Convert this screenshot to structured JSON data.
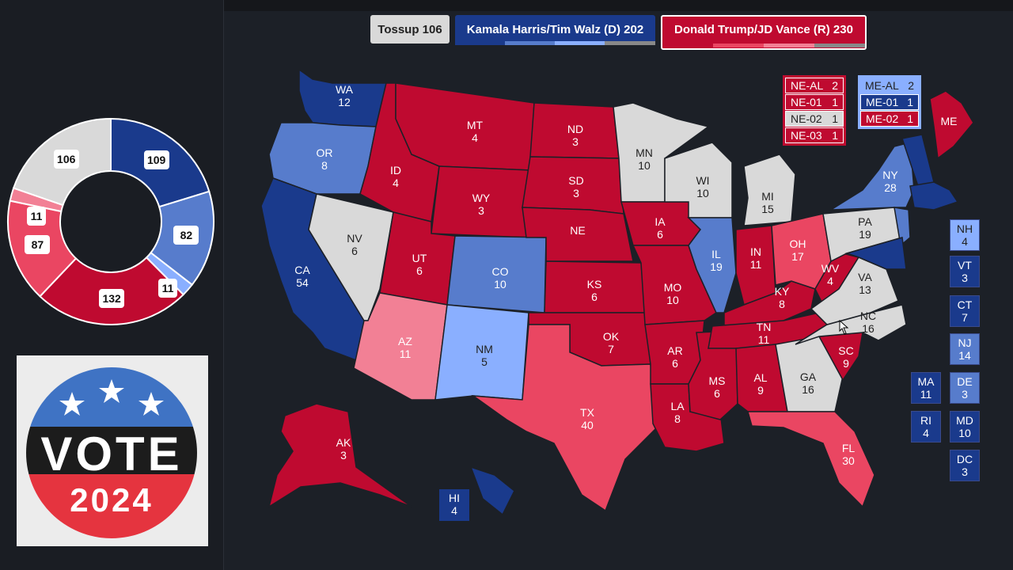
{
  "header": {
    "tossup_label": "Tossup 106",
    "dem_label": "Kamala Harris/Tim Walz (D) 202",
    "rep_label": "Donald Trump/JD Vance (R) 230"
  },
  "colors": {
    "safe_d": "#1a3a8c",
    "likely_d": "#577ccc",
    "lean_d": "#8aafff",
    "tossup": "#d9d9d9",
    "lean_r": "#f28095",
    "likely_r": "#ea4662",
    "safe_r": "#bf0a30",
    "background": "#1c2027"
  },
  "chart_data": {
    "type": "pie",
    "slices": [
      {
        "label": "Safe D",
        "value": 109,
        "color": "#1a3a8c"
      },
      {
        "label": "Likely D",
        "value": 82,
        "color": "#577ccc"
      },
      {
        "label": "Lean D",
        "value": 11,
        "color": "#8aafff"
      },
      {
        "label": "Safe R",
        "value": 132,
        "color": "#bf0a30"
      },
      {
        "label": "Likely R",
        "value": 87,
        "color": "#ea4662"
      },
      {
        "label": "Lean R",
        "value": 11,
        "color": "#f28095"
      },
      {
        "label": "Tossup",
        "value": 106,
        "color": "#d9d9d9"
      }
    ],
    "labels": [
      "109",
      "82",
      "11",
      "132",
      "87",
      "11",
      "106"
    ]
  },
  "vote_logo": {
    "word": "VOTE",
    "year": "2024"
  },
  "states": [
    {
      "abbr": "WA",
      "ev": "12",
      "rating": "safe_d"
    },
    {
      "abbr": "OR",
      "ev": "8",
      "rating": "likely_d"
    },
    {
      "abbr": "CA",
      "ev": "54",
      "rating": "safe_d"
    },
    {
      "abbr": "NV",
      "ev": "6",
      "rating": "tossup"
    },
    {
      "abbr": "ID",
      "ev": "4",
      "rating": "safe_r"
    },
    {
      "abbr": "MT",
      "ev": "4",
      "rating": "safe_r"
    },
    {
      "abbr": "WY",
      "ev": "3",
      "rating": "safe_r"
    },
    {
      "abbr": "UT",
      "ev": "6",
      "rating": "safe_r"
    },
    {
      "abbr": "AZ",
      "ev": "11",
      "rating": "lean_r"
    },
    {
      "abbr": "CO",
      "ev": "10",
      "rating": "likely_d"
    },
    {
      "abbr": "NM",
      "ev": "5",
      "rating": "lean_d"
    },
    {
      "abbr": "ND",
      "ev": "3",
      "rating": "safe_r"
    },
    {
      "abbr": "SD",
      "ev": "3",
      "rating": "safe_r"
    },
    {
      "abbr": "NE",
      "ev": "",
      "rating": "safe_r"
    },
    {
      "abbr": "KS",
      "ev": "6",
      "rating": "safe_r"
    },
    {
      "abbr": "OK",
      "ev": "7",
      "rating": "safe_r"
    },
    {
      "abbr": "TX",
      "ev": "40",
      "rating": "likely_r"
    },
    {
      "abbr": "MN",
      "ev": "10",
      "rating": "tossup"
    },
    {
      "abbr": "IA",
      "ev": "6",
      "rating": "safe_r"
    },
    {
      "abbr": "MO",
      "ev": "10",
      "rating": "safe_r"
    },
    {
      "abbr": "AR",
      "ev": "6",
      "rating": "safe_r"
    },
    {
      "abbr": "LA",
      "ev": "8",
      "rating": "safe_r"
    },
    {
      "abbr": "WI",
      "ev": "10",
      "rating": "tossup"
    },
    {
      "abbr": "IL",
      "ev": "19",
      "rating": "likely_d"
    },
    {
      "abbr": "MS",
      "ev": "6",
      "rating": "safe_r"
    },
    {
      "abbr": "MI",
      "ev": "15",
      "rating": "tossup"
    },
    {
      "abbr": "IN",
      "ev": "11",
      "rating": "safe_r"
    },
    {
      "abbr": "KY",
      "ev": "8",
      "rating": "safe_r"
    },
    {
      "abbr": "TN",
      "ev": "11",
      "rating": "safe_r"
    },
    {
      "abbr": "AL",
      "ev": "9",
      "rating": "safe_r"
    },
    {
      "abbr": "OH",
      "ev": "17",
      "rating": "likely_r"
    },
    {
      "abbr": "WV",
      "ev": "4",
      "rating": "safe_r"
    },
    {
      "abbr": "GA",
      "ev": "16",
      "rating": "tossup"
    },
    {
      "abbr": "FL",
      "ev": "30",
      "rating": "likely_r"
    },
    {
      "abbr": "SC",
      "ev": "9",
      "rating": "safe_r"
    },
    {
      "abbr": "NC",
      "ev": "16",
      "rating": "tossup"
    },
    {
      "abbr": "VA",
      "ev": "13",
      "rating": "tossup"
    },
    {
      "abbr": "PA",
      "ev": "19",
      "rating": "tossup"
    },
    {
      "abbr": "NY",
      "ev": "28",
      "rating": "likely_d"
    },
    {
      "abbr": "ME",
      "ev": "",
      "rating": "safe_r"
    },
    {
      "abbr": "AK",
      "ev": "3",
      "rating": "safe_r"
    },
    {
      "abbr": "HI",
      "ev": "4",
      "rating": "safe_d"
    }
  ],
  "small_states": [
    {
      "abbr": "NH",
      "ev": "4",
      "rating": "lean_d"
    },
    {
      "abbr": "VT",
      "ev": "3",
      "rating": "safe_d"
    },
    {
      "abbr": "CT",
      "ev": "7",
      "rating": "safe_d"
    },
    {
      "abbr": "NJ",
      "ev": "14",
      "rating": "likely_d"
    },
    {
      "abbr": "DE",
      "ev": "3",
      "rating": "likely_d"
    },
    {
      "abbr": "MD",
      "ev": "10",
      "rating": "safe_d"
    },
    {
      "abbr": "DC",
      "ev": "3",
      "rating": "safe_d"
    },
    {
      "abbr": "MA",
      "ev": "11",
      "rating": "safe_d"
    },
    {
      "abbr": "RI",
      "ev": "4",
      "rating": "safe_d"
    }
  ],
  "nebraska_districts": [
    {
      "name": "NE-AL",
      "ev": "2",
      "rating": "safe_r"
    },
    {
      "name": "NE-01",
      "ev": "1",
      "rating": "safe_r"
    },
    {
      "name": "NE-02",
      "ev": "1",
      "rating": "tossup"
    },
    {
      "name": "NE-03",
      "ev": "1",
      "rating": "safe_r"
    }
  ],
  "maine_districts": [
    {
      "name": "ME-AL",
      "ev": "2",
      "rating": "lean_d"
    },
    {
      "name": "ME-01",
      "ev": "1",
      "rating": "safe_d"
    },
    {
      "name": "ME-02",
      "ev": "1",
      "rating": "safe_r"
    }
  ]
}
